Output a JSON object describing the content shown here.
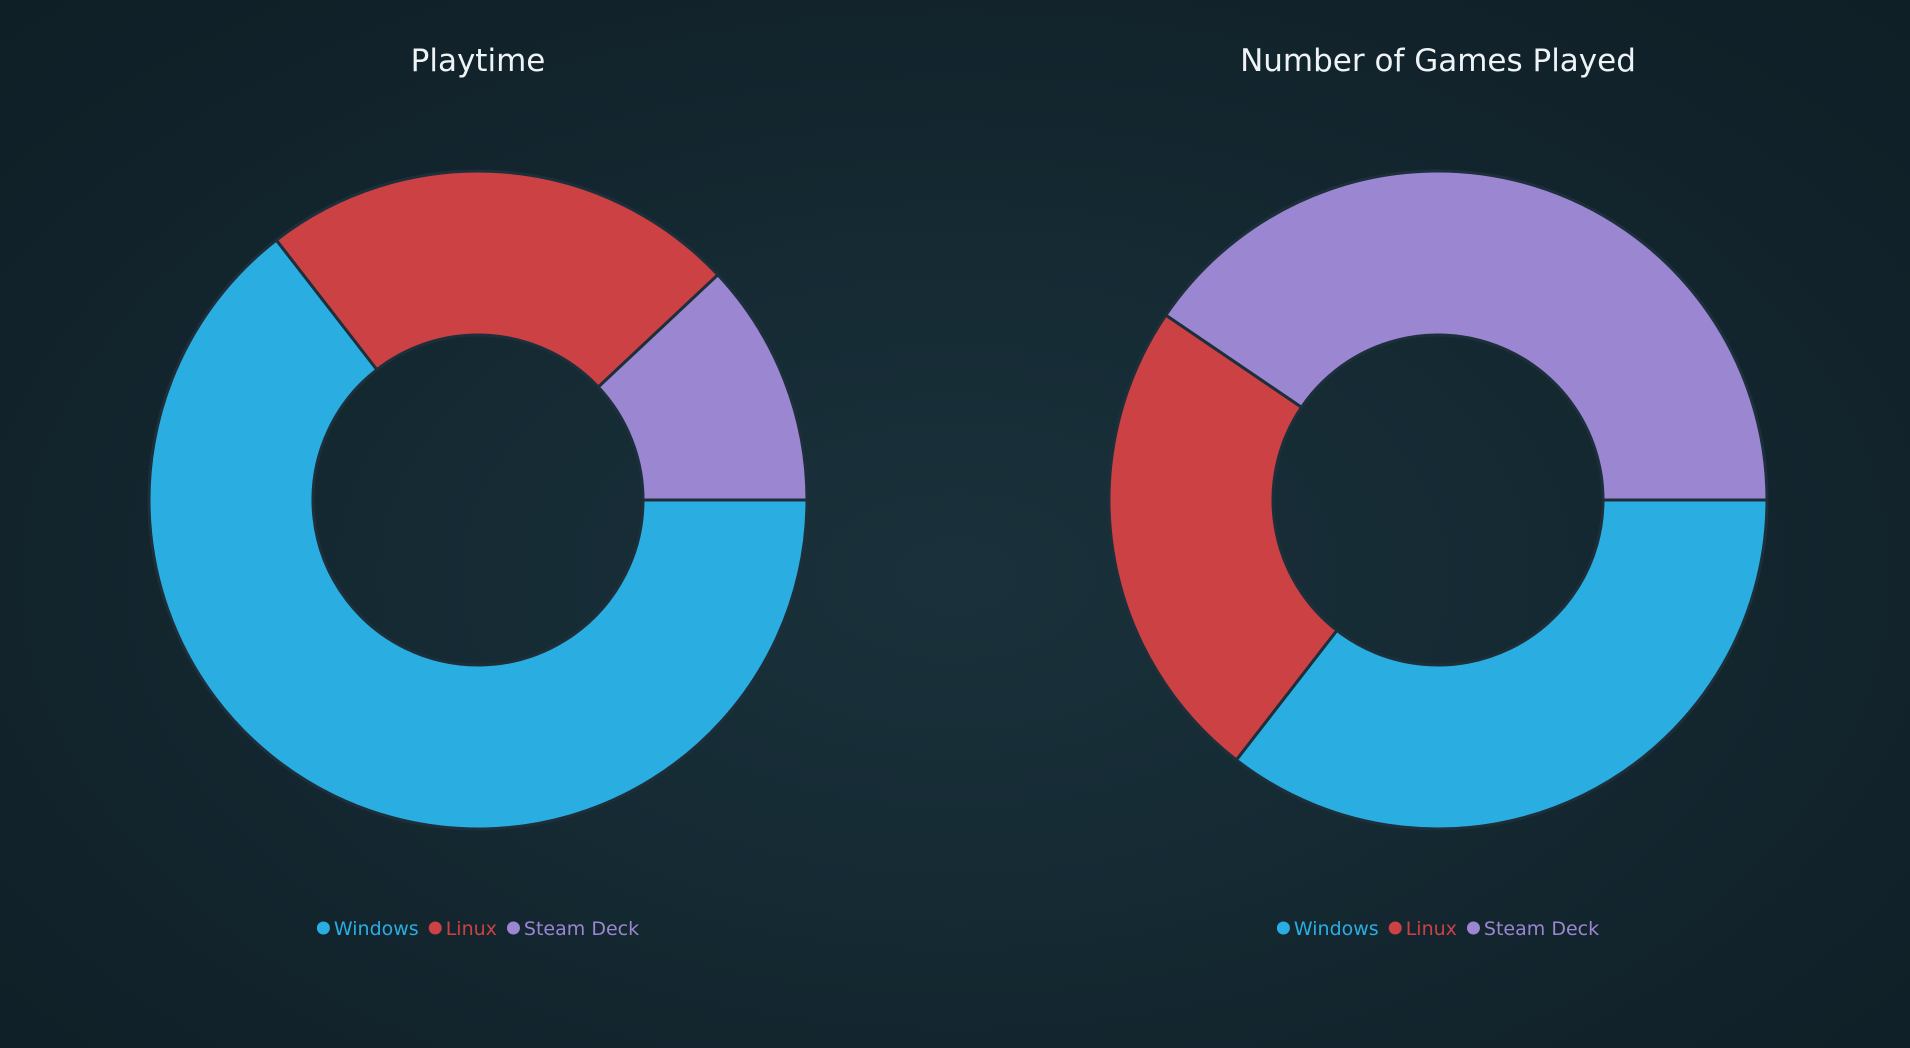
{
  "colors": {
    "windows": "#2aaee2",
    "linux": "#cc4143",
    "steam_deck": "#9a86d1",
    "stroke": "#1d2f3a"
  },
  "chart_data": [
    {
      "type": "pie",
      "subtype": "donut",
      "title": "Playtime",
      "series": [
        {
          "name": "Windows",
          "value": 64.5,
          "color": "#2aaee2"
        },
        {
          "name": "Linux",
          "value": 23.5,
          "color": "#cc4143"
        },
        {
          "name": "Steam Deck",
          "value": 12.0,
          "color": "#9a86d1"
        }
      ],
      "legend_position": "bottom-center"
    },
    {
      "type": "pie",
      "subtype": "donut",
      "title": "Number of Games Played",
      "series": [
        {
          "name": "Windows",
          "value": 35.5,
          "color": "#2aaee2"
        },
        {
          "name": "Linux",
          "value": 24.0,
          "color": "#cc4143"
        },
        {
          "name": "Steam Deck",
          "value": 40.5,
          "color": "#9a86d1"
        }
      ],
      "legend_position": "bottom-center"
    }
  ]
}
